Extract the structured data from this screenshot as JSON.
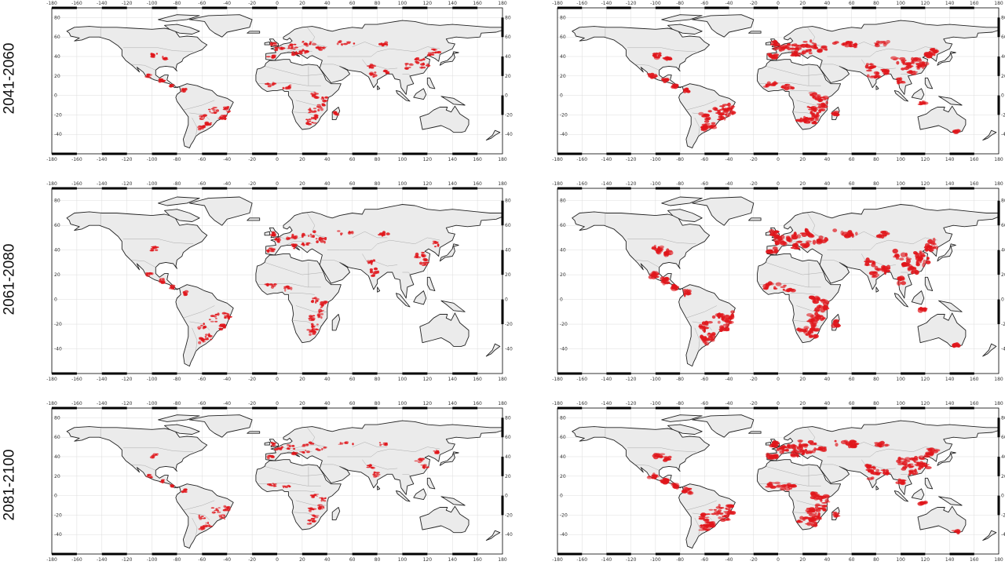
{
  "rows": [
    {
      "period": "2041-2060"
    },
    {
      "period": "2061-2080"
    },
    {
      "period": "2081-2100"
    }
  ],
  "axes": {
    "lon_ticks": [
      -180,
      -160,
      -140,
      -120,
      -100,
      -80,
      -60,
      -40,
      -20,
      0,
      20,
      40,
      60,
      80,
      100,
      120,
      140,
      160,
      180
    ],
    "lat_ticks": [
      80,
      60,
      40,
      20,
      0,
      -20,
      -40
    ],
    "lon_range": [
      -180,
      180
    ],
    "lat_range": [
      -60,
      90
    ],
    "grid": true
  },
  "colors": {
    "land": "#ebebeb",
    "coast": "#222222",
    "borders": "#9a9a9a",
    "highlight": "#e0161b",
    "grid": "#dcdcdc"
  }
}
